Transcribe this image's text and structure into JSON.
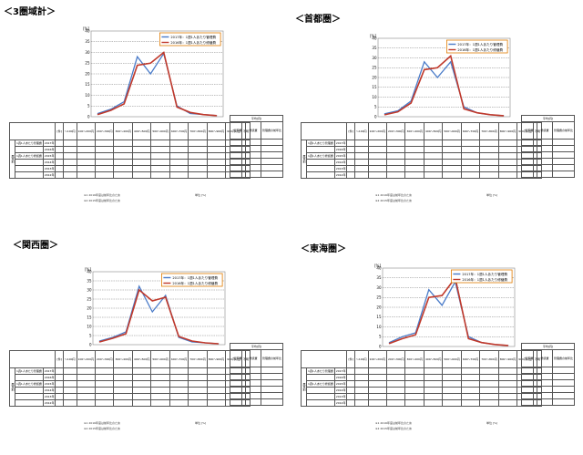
{
  "panels": [
    {
      "title": "＜3圏域計＞",
      "chart_data": {
        "type": "line",
        "ylabel_unit": "[%]",
        "ylim": [
          0,
          40
        ],
        "yticks": [
          0,
          5,
          10,
          15,
          20,
          25,
          30,
          35,
          40
        ],
        "series": [
          {
            "name": "2017年：1週1人あたり管理費",
            "color": "#4a7bc8",
            "values": [
              1.5,
              3.5,
              7.0,
              28.0,
              20.0,
              29.5,
              5.0,
              1.5,
              1.0,
              0.5
            ]
          },
          {
            "name": "2016年：1週1人あたり修繕費",
            "color": "#c0392b",
            "values": [
              1.0,
              3.0,
              6.0,
              24.0,
              25.0,
              30.0,
              4.5,
              2.0,
              1.0,
              0.5
            ]
          }
        ]
      }
    },
    {
      "title": "＜首都圏＞",
      "chart_data": {
        "type": "line",
        "ylabel_unit": "[%]",
        "ylim": [
          0,
          40
        ],
        "yticks": [
          0,
          5,
          10,
          15,
          20,
          25,
          30,
          35,
          40
        ],
        "series": [
          {
            "name": "2017年：1週1人あたり管理費",
            "color": "#4a7bc8",
            "values": [
              1.5,
              3.0,
              8.0,
              28.0,
              20.0,
              28.0,
              5.0,
              2.0,
              1.0,
              0.5
            ]
          },
          {
            "name": "2016年：1週1人あたり修繕費",
            "color": "#c0392b",
            "values": [
              1.0,
              2.5,
              7.0,
              24.0,
              25.0,
              31.0,
              4.0,
              2.0,
              1.0,
              0.5
            ]
          }
        ]
      }
    },
    {
      "title": "＜関西圏＞",
      "chart_data": {
        "type": "line",
        "ylabel_unit": "[%]",
        "ylim": [
          0,
          40
        ],
        "yticks": [
          0,
          5,
          10,
          15,
          20,
          25,
          30,
          35,
          40
        ],
        "series": [
          {
            "name": "2017年：1週1人あたり管理費",
            "color": "#4a7bc8",
            "values": [
              2.0,
              4.0,
              7.0,
              32.0,
              18.0,
              27.0,
              4.0,
              1.5,
              1.0,
              0.5
            ]
          },
          {
            "name": "2016年：1週1人あたり修繕費",
            "color": "#c0392b",
            "values": [
              1.5,
              3.5,
              6.0,
              30.0,
              24.0,
              26.0,
              4.5,
              2.0,
              1.0,
              0.5
            ]
          }
        ]
      }
    },
    {
      "title": "＜東海圏＞",
      "chart_data": {
        "type": "line",
        "ylabel_unit": "[%]",
        "ylim": [
          0,
          40
        ],
        "yticks": [
          0,
          5,
          10,
          15,
          20,
          25,
          30,
          35,
          40
        ],
        "series": [
          {
            "name": "2017年：1週1人あたり管理費",
            "color": "#4a7bc8",
            "values": [
              2.0,
              5.0,
              7.0,
              29.0,
              21.0,
              33.0,
              5.0,
              2.0,
              1.0,
              0.5
            ]
          },
          {
            "name": "2016年：1週1人あたり修繕費",
            "color": "#c0392b",
            "values": [
              1.5,
              4.0,
              6.0,
              25.0,
              26.0,
              35.0,
              4.0,
              2.0,
              1.0,
              0.5
            ]
          }
        ]
      }
    }
  ],
  "table": {
    "side_label": "属性別",
    "row_labels": [
      "1週1人あたり管理費",
      "",
      "1週1人あたり修繕費",
      "",
      "",
      ""
    ],
    "row_years": [
      "2017年",
      "2016年",
      "2015年",
      "2014年",
      "2013年",
      "2012年"
    ],
    "col_head": [
      "[件]",
      "〜100円",
      "100〜200円",
      "200〜300円",
      "300〜400円",
      "400〜500円",
      "500〜600円",
      "600〜700円",
      "700〜800円",
      "800〜900円",
      "900円以上",
      "不明"
    ],
    "right_head": [
      "平均[円]",
      "管理費",
      "修繕費",
      "管理費の前年比"
    ],
    "note1": "※1 2016年度は前年比のため",
    "note2": "※2 2015年度は前年比のため",
    "unit": "単位 [%]"
  }
}
